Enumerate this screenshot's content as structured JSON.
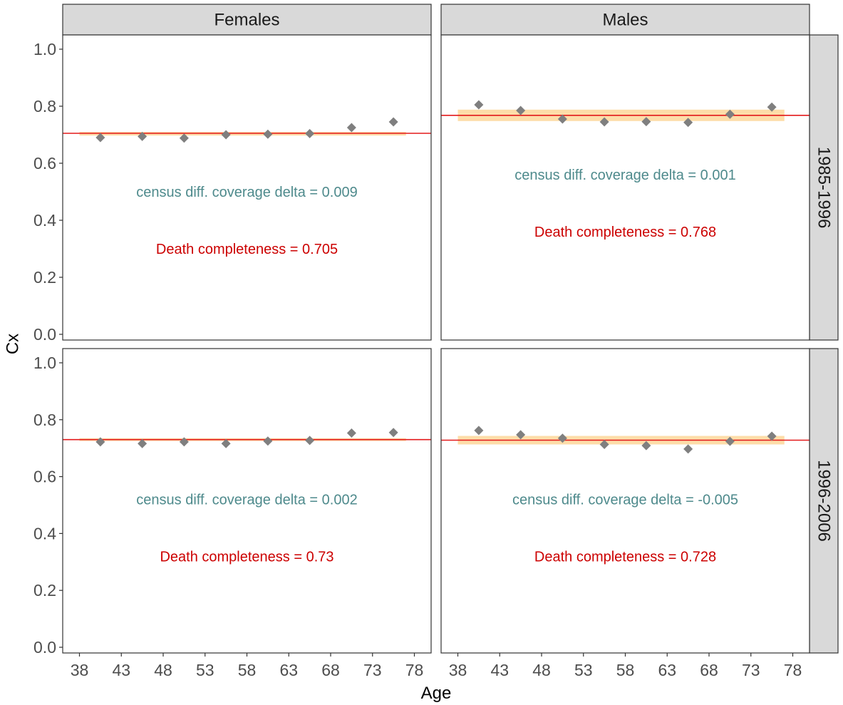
{
  "chart_data": {
    "type": "scatter",
    "xlabel": "Age",
    "ylabel": "Cx",
    "xlim": [
      36,
      80
    ],
    "ylim": [
      -0.02,
      1.05
    ],
    "x_ticks": [
      38,
      43,
      48,
      53,
      58,
      63,
      68,
      73,
      78
    ],
    "y_ticks": [
      0.0,
      0.2,
      0.4,
      0.6,
      0.8,
      1.0
    ],
    "y_tick_labels": [
      "0.0",
      "0.2",
      "0.4",
      "0.6",
      "0.8",
      "1.0"
    ],
    "grid": false,
    "facet_cols": [
      "Females",
      "Males"
    ],
    "facet_rows": [
      "1985-1996",
      "1996-2006"
    ],
    "colors": {
      "points": "#7f7f7f",
      "line": "#e31a1c",
      "band": "#fdd9a0",
      "annot_census": "#4e8a8c",
      "annot_death": "#cc0000",
      "strip_fill": "#d9d9d9"
    },
    "panels": [
      {
        "col": "Females",
        "row": "1985-1996",
        "x": [
          40.5,
          45.5,
          50.5,
          55.5,
          60.5,
          65.5,
          70.5,
          75.5
        ],
        "y": [
          0.69,
          0.694,
          0.688,
          0.7,
          0.702,
          0.704,
          0.725,
          0.745
        ],
        "line_y": 0.705,
        "band": [
          0.697,
          0.71
        ],
        "band_x": [
          38,
          77
        ],
        "census_text": "census diff. coverage delta  = 0.009",
        "death_text": "Death completeness = 0.705",
        "census_y": 0.5,
        "death_y": 0.3
      },
      {
        "col": "Males",
        "row": "1985-1996",
        "x": [
          40.5,
          45.5,
          50.5,
          55.5,
          60.5,
          65.5,
          70.5,
          75.5
        ],
        "y": [
          0.805,
          0.785,
          0.755,
          0.745,
          0.746,
          0.743,
          0.772,
          0.797
        ],
        "line_y": 0.768,
        "band": [
          0.748,
          0.788
        ],
        "band_x": [
          38,
          77
        ],
        "census_text": "census diff. coverage delta  = 0.001",
        "death_text": "Death completeness = 0.768",
        "census_y": 0.56,
        "death_y": 0.36
      },
      {
        "col": "Females",
        "row": "1996-2006",
        "x": [
          40.5,
          45.5,
          50.5,
          55.5,
          60.5,
          65.5,
          70.5,
          75.5
        ],
        "y": [
          0.722,
          0.716,
          0.722,
          0.716,
          0.725,
          0.727,
          0.753,
          0.755
        ],
        "line_y": 0.73,
        "band": [
          0.725,
          0.735
        ],
        "band_x": [
          38,
          77
        ],
        "census_text": "census diff. coverage delta  = 0.002",
        "death_text": "Death completeness = 0.73",
        "census_y": 0.52,
        "death_y": 0.32
      },
      {
        "col": "Males",
        "row": "1996-2006",
        "x": [
          40.5,
          45.5,
          50.5,
          55.5,
          60.5,
          65.5,
          70.5,
          75.5
        ],
        "y": [
          0.762,
          0.747,
          0.735,
          0.713,
          0.709,
          0.697,
          0.724,
          0.742
        ],
        "line_y": 0.728,
        "band": [
          0.713,
          0.743
        ],
        "band_x": [
          38,
          77
        ],
        "census_text": "census diff. coverage delta  = -0.005",
        "death_text": "Death completeness = 0.728",
        "census_y": 0.52,
        "death_y": 0.32
      }
    ]
  }
}
